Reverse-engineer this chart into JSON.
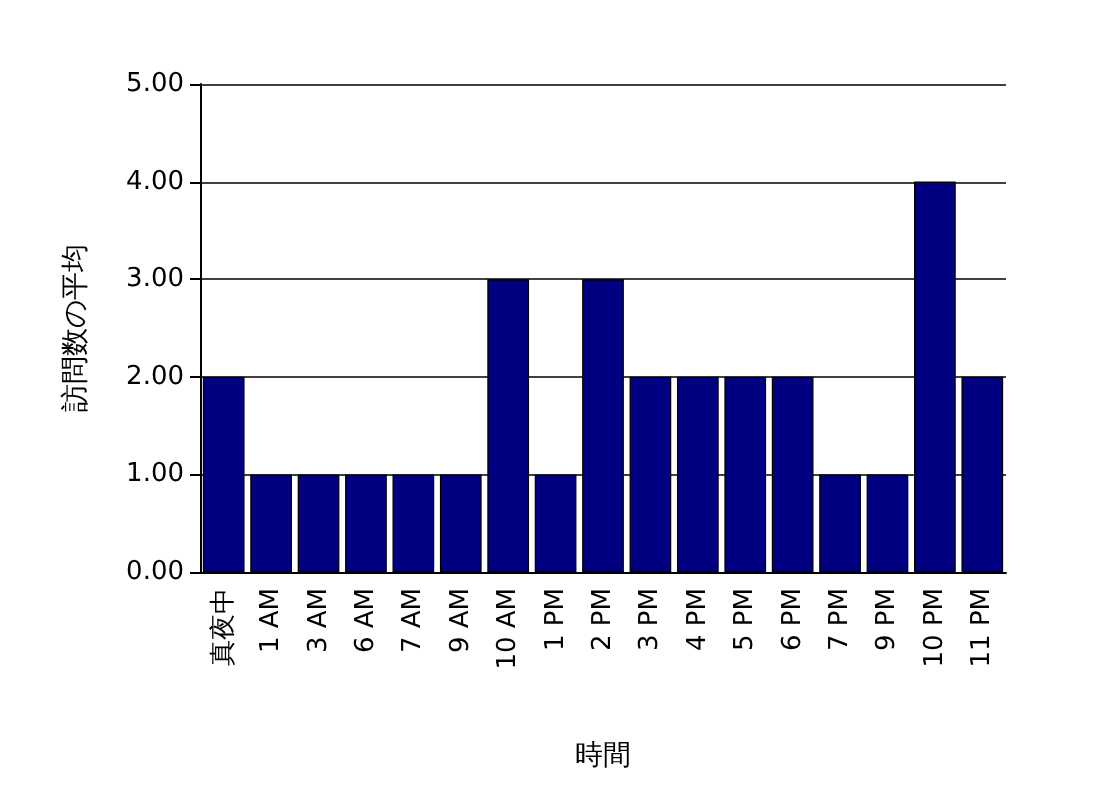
{
  "chart_data": {
    "type": "bar",
    "xlabel": "時間",
    "ylabel": "訪問数の平均",
    "categories": [
      "真夜中",
      "1 AM",
      "3 AM",
      "6 AM",
      "7 AM",
      "9 AM",
      "10 AM",
      "1 PM",
      "2 PM",
      "3 PM",
      "4 PM",
      "5 PM",
      "6 PM",
      "7 PM",
      "9 PM",
      "10 PM",
      "11 PM"
    ],
    "values": [
      2,
      1,
      1,
      1,
      1,
      1,
      3,
      1,
      3,
      2,
      2,
      2,
      2,
      1,
      1,
      4,
      2
    ],
    "color": "#000080",
    "ylim": [
      0,
      5
    ],
    "yticks": [
      {
        "value": 0,
        "label": "0.00"
      },
      {
        "value": 1,
        "label": "1.00"
      },
      {
        "value": 2,
        "label": "2.00"
      },
      {
        "value": 3,
        "label": "3.00"
      },
      {
        "value": 4,
        "label": "4.00"
      },
      {
        "value": 5,
        "label": "5.00"
      }
    ],
    "grid": "y"
  }
}
